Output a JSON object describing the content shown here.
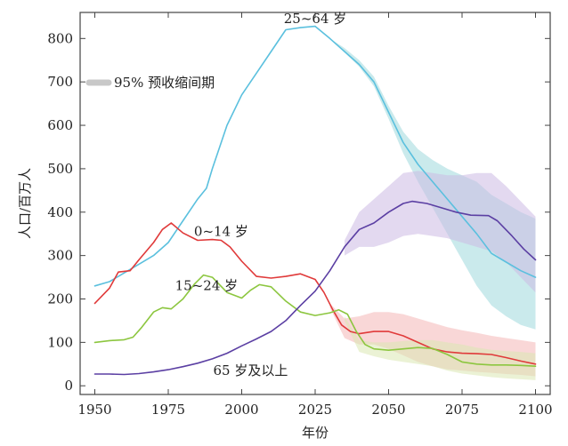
{
  "chart_data": {
    "type": "line",
    "xlabel": "年份",
    "ylabel": "人口/百万人",
    "xlim": [
      1945,
      2105
    ],
    "ylim": [
      -20,
      860
    ],
    "x_ticks": [
      1950,
      1975,
      2000,
      2025,
      2050,
      2075,
      2100
    ],
    "y_ticks": [
      0,
      100,
      200,
      300,
      400,
      500,
      600,
      700,
      800
    ],
    "grid": false,
    "legend": {
      "label": "95% 预收缩间期",
      "color": "#c8c8c8",
      "placement": "top-left"
    },
    "series": [
      {
        "name": "25~64 岁",
        "color": "#5bc0de",
        "band_color": "#9fd8dd",
        "points": [
          [
            1950,
            230
          ],
          [
            1955,
            240
          ],
          [
            1960,
            260
          ],
          [
            1965,
            280
          ],
          [
            1970,
            300
          ],
          [
            1975,
            330
          ],
          [
            1980,
            380
          ],
          [
            1985,
            430
          ],
          [
            1988,
            455
          ],
          [
            1990,
            500
          ],
          [
            1995,
            600
          ],
          [
            2000,
            670
          ],
          [
            2005,
            720
          ],
          [
            2010,
            770
          ],
          [
            2015,
            820
          ],
          [
            2020,
            825
          ],
          [
            2025,
            828
          ],
          [
            2030,
            800
          ],
          [
            2035,
            770
          ],
          [
            2040,
            740
          ],
          [
            2045,
            700
          ],
          [
            2050,
            630
          ],
          [
            2055,
            560
          ],
          [
            2060,
            510
          ],
          [
            2065,
            470
          ],
          [
            2070,
            430
          ],
          [
            2075,
            390
          ],
          [
            2080,
            350
          ],
          [
            2085,
            305
          ],
          [
            2090,
            285
          ],
          [
            2095,
            265
          ],
          [
            2100,
            250
          ]
        ],
        "band": [
          [
            2030,
            800,
            800
          ],
          [
            2035,
            768,
            778
          ],
          [
            2040,
            735,
            750
          ],
          [
            2045,
            690,
            712
          ],
          [
            2050,
            615,
            645
          ],
          [
            2055,
            535,
            585
          ],
          [
            2060,
            470,
            545
          ],
          [
            2065,
            410,
            520
          ],
          [
            2070,
            350,
            500
          ],
          [
            2075,
            290,
            485
          ],
          [
            2080,
            230,
            470
          ],
          [
            2085,
            185,
            440
          ],
          [
            2090,
            160,
            420
          ],
          [
            2095,
            140,
            400
          ],
          [
            2100,
            130,
            385
          ]
        ]
      },
      {
        "name": "0~14 岁",
        "color": "#e03a3a",
        "band_color": "#f4b6b6",
        "points": [
          [
            1950,
            190
          ],
          [
            1955,
            225
          ],
          [
            1958,
            262
          ],
          [
            1962,
            265
          ],
          [
            1965,
            290
          ],
          [
            1970,
            330
          ],
          [
            1973,
            360
          ],
          [
            1976,
            375
          ],
          [
            1980,
            352
          ],
          [
            1985,
            335
          ],
          [
            1990,
            337
          ],
          [
            1993,
            335
          ],
          [
            1996,
            320
          ],
          [
            2000,
            287
          ],
          [
            2005,
            252
          ],
          [
            2010,
            248
          ],
          [
            2015,
            252
          ],
          [
            2020,
            258
          ],
          [
            2025,
            245
          ],
          [
            2028,
            215
          ],
          [
            2031,
            175
          ],
          [
            2034,
            140
          ],
          [
            2037,
            125
          ],
          [
            2040,
            120
          ],
          [
            2045,
            125
          ],
          [
            2050,
            125
          ],
          [
            2055,
            115
          ],
          [
            2060,
            100
          ],
          [
            2065,
            85
          ],
          [
            2070,
            78
          ],
          [
            2075,
            75
          ],
          [
            2080,
            74
          ],
          [
            2085,
            72
          ],
          [
            2090,
            65
          ],
          [
            2095,
            57
          ],
          [
            2100,
            50
          ]
        ],
        "band": [
          [
            2030,
            180,
            190
          ],
          [
            2035,
            110,
            155
          ],
          [
            2040,
            95,
            160
          ],
          [
            2045,
            95,
            170
          ],
          [
            2050,
            85,
            170
          ],
          [
            2055,
            70,
            165
          ],
          [
            2060,
            55,
            155
          ],
          [
            2065,
            45,
            145
          ],
          [
            2070,
            38,
            135
          ],
          [
            2075,
            35,
            128
          ],
          [
            2080,
            32,
            122
          ],
          [
            2085,
            30,
            115
          ],
          [
            2090,
            27,
            110
          ],
          [
            2095,
            25,
            105
          ],
          [
            2100,
            22,
            100
          ]
        ]
      },
      {
        "name": "15~24 岁",
        "color": "#8cc63f",
        "band_color": "#dbe7b3",
        "points": [
          [
            1950,
            100
          ],
          [
            1955,
            104
          ],
          [
            1960,
            106
          ],
          [
            1963,
            112
          ],
          [
            1966,
            135
          ],
          [
            1970,
            170
          ],
          [
            1973,
            180
          ],
          [
            1976,
            177
          ],
          [
            1980,
            200
          ],
          [
            1984,
            235
          ],
          [
            1987,
            255
          ],
          [
            1990,
            250
          ],
          [
            1995,
            215
          ],
          [
            2000,
            202
          ],
          [
            2003,
            220
          ],
          [
            2006,
            233
          ],
          [
            2010,
            228
          ],
          [
            2015,
            195
          ],
          [
            2020,
            170
          ],
          [
            2025,
            162
          ],
          [
            2030,
            168
          ],
          [
            2033,
            175
          ],
          [
            2036,
            165
          ],
          [
            2039,
            125
          ],
          [
            2042,
            95
          ],
          [
            2045,
            85
          ],
          [
            2050,
            82
          ],
          [
            2055,
            85
          ],
          [
            2060,
            88
          ],
          [
            2065,
            86
          ],
          [
            2070,
            72
          ],
          [
            2075,
            55
          ],
          [
            2080,
            50
          ],
          [
            2085,
            48
          ],
          [
            2090,
            48
          ],
          [
            2095,
            47
          ],
          [
            2100,
            45
          ]
        ],
        "band": [
          [
            2035,
            150,
            160
          ],
          [
            2040,
            78,
            105
          ],
          [
            2045,
            68,
            100
          ],
          [
            2050,
            60,
            100
          ],
          [
            2055,
            55,
            103
          ],
          [
            2060,
            50,
            105
          ],
          [
            2065,
            45,
            105
          ],
          [
            2070,
            35,
            100
          ],
          [
            2075,
            28,
            95
          ],
          [
            2080,
            24,
            88
          ],
          [
            2085,
            20,
            83
          ],
          [
            2090,
            17,
            80
          ],
          [
            2095,
            15,
            78
          ],
          [
            2100,
            13,
            75
          ]
        ]
      },
      {
        "name": "65 岁及以上",
        "color": "#5b3fa3",
        "band_color": "#ccb9e3",
        "points": [
          [
            1950,
            27
          ],
          [
            1955,
            27
          ],
          [
            1960,
            26
          ],
          [
            1965,
            28
          ],
          [
            1970,
            32
          ],
          [
            1975,
            37
          ],
          [
            1980,
            44
          ],
          [
            1985,
            52
          ],
          [
            1990,
            62
          ],
          [
            1995,
            75
          ],
          [
            2000,
            92
          ],
          [
            2005,
            108
          ],
          [
            2010,
            125
          ],
          [
            2015,
            150
          ],
          [
            2020,
            185
          ],
          [
            2025,
            218
          ],
          [
            2030,
            265
          ],
          [
            2035,
            320
          ],
          [
            2040,
            360
          ],
          [
            2045,
            375
          ],
          [
            2050,
            400
          ],
          [
            2055,
            420
          ],
          [
            2058,
            425
          ],
          [
            2063,
            420
          ],
          [
            2068,
            410
          ],
          [
            2073,
            400
          ],
          [
            2078,
            393
          ],
          [
            2084,
            392
          ],
          [
            2087,
            380
          ],
          [
            2092,
            345
          ],
          [
            2096,
            315
          ],
          [
            2100,
            290
          ]
        ],
        "band": [
          [
            2035,
            300,
            335
          ],
          [
            2040,
            320,
            400
          ],
          [
            2045,
            320,
            430
          ],
          [
            2050,
            330,
            460
          ],
          [
            2055,
            345,
            490
          ],
          [
            2060,
            350,
            495
          ],
          [
            2065,
            345,
            490
          ],
          [
            2070,
            340,
            485
          ],
          [
            2075,
            330,
            485
          ],
          [
            2080,
            320,
            490
          ],
          [
            2085,
            310,
            490
          ],
          [
            2090,
            285,
            460
          ],
          [
            2095,
            250,
            425
          ],
          [
            2100,
            215,
            390
          ]
        ]
      }
    ],
    "labels": [
      {
        "text": "25~64 岁",
        "x": 2025,
        "y": 835
      },
      {
        "text": "0~14 岁",
        "x": 1993,
        "y": 345
      },
      {
        "text": "15~24 岁",
        "x": 1988,
        "y": 220
      },
      {
        "text": "65 岁及以上",
        "x": 2003,
        "y": 25
      }
    ]
  }
}
